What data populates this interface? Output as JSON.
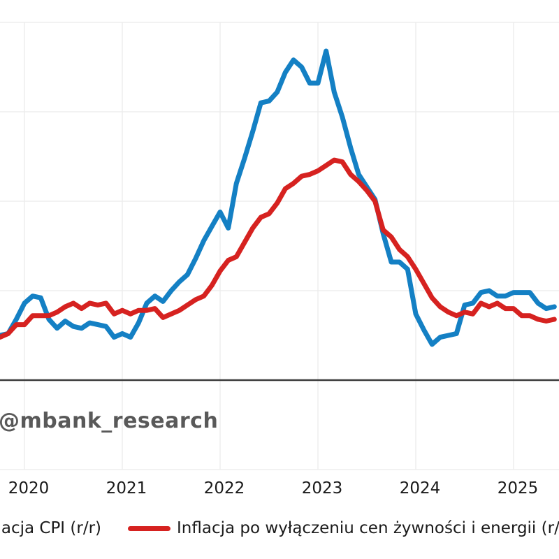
{
  "watermark": {
    "text": "@mbank_research",
    "color": "#595959"
  },
  "chart_data": {
    "type": "line",
    "title": "",
    "xlabel": "",
    "ylabel": "",
    "x_start_month": "2019-10",
    "x_end_month": "2025-06",
    "x_tick_labels": [
      "2020",
      "2021",
      "2022",
      "2023",
      "2024",
      "2025"
    ],
    "ylim": [
      -5,
      20
    ],
    "y_gridline_step": 5,
    "grid": true,
    "zero_line": true,
    "legend_position": "bottom",
    "series": [
      {
        "name": "Inflacja CPI (r/r)",
        "color": "#1480c4",
        "values": [
          2.5,
          2.6,
          3.4,
          4.3,
          4.7,
          4.6,
          3.4,
          2.9,
          3.3,
          3.0,
          2.9,
          3.2,
          3.1,
          3.0,
          2.4,
          2.6,
          2.4,
          3.2,
          4.3,
          4.7,
          4.4,
          5.0,
          5.5,
          5.9,
          6.8,
          7.8,
          8.6,
          9.4,
          8.5,
          11.0,
          12.4,
          13.9,
          15.5,
          15.6,
          16.1,
          17.2,
          17.9,
          17.5,
          16.6,
          16.6,
          18.4,
          16.1,
          14.7,
          13.0,
          11.5,
          10.8,
          10.1,
          8.2,
          6.6,
          6.6,
          6.2,
          3.7,
          2.8,
          2.0,
          2.4,
          2.5,
          2.6,
          4.2,
          4.3,
          4.9,
          5.0,
          4.7,
          4.7,
          4.9,
          4.9,
          4.9,
          4.3,
          4.0,
          4.1
        ]
      },
      {
        "name": "Inflacja po wyłączeniu cen żywności i energii (r/r)",
        "color": "#d62220",
        "values": [
          2.4,
          2.6,
          3.1,
          3.1,
          3.6,
          3.6,
          3.6,
          3.8,
          4.1,
          4.3,
          4.0,
          4.3,
          4.2,
          4.3,
          3.7,
          3.9,
          3.7,
          3.9,
          3.9,
          4.0,
          3.5,
          3.7,
          3.9,
          4.2,
          4.5,
          4.7,
          5.3,
          6.1,
          6.7,
          6.9,
          7.7,
          8.5,
          9.1,
          9.3,
          9.9,
          10.7,
          11.0,
          11.4,
          11.5,
          11.7,
          12.0,
          12.3,
          12.2,
          11.5,
          11.1,
          10.6,
          10.0,
          8.4,
          8.0,
          7.3,
          6.9,
          6.2,
          5.4,
          4.6,
          4.1,
          3.8,
          3.6,
          3.8,
          3.7,
          4.3,
          4.1,
          4.3,
          4.0,
          4.0,
          3.6,
          3.6,
          3.4,
          3.3,
          3.4
        ]
      }
    ]
  }
}
